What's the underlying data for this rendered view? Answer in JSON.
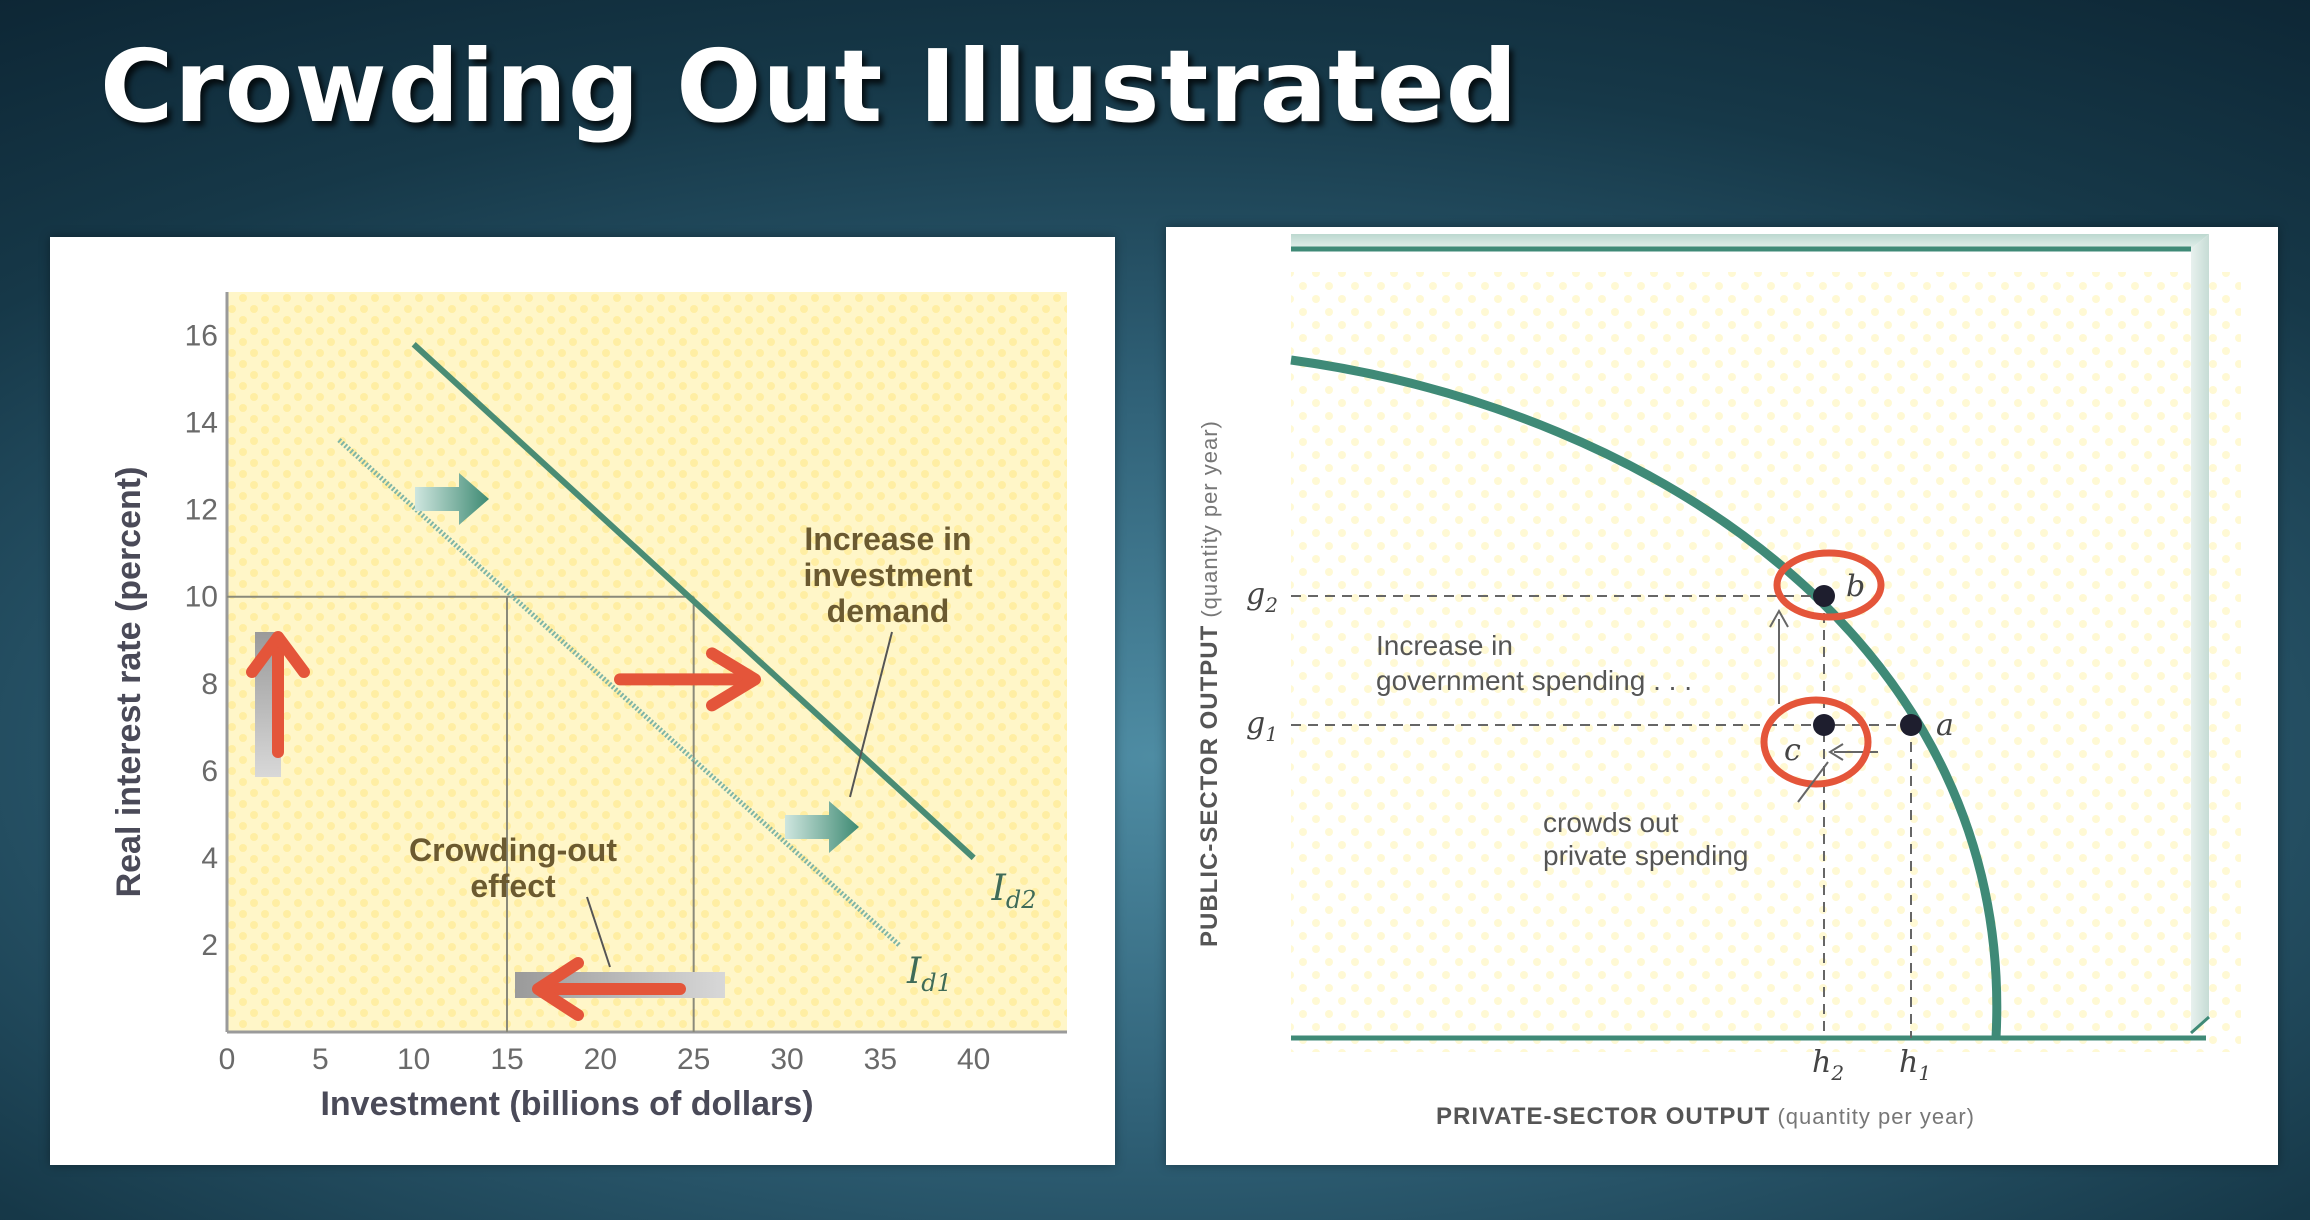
{
  "slide": {
    "title": "Crowding Out Illustrated"
  },
  "chart_data": [
    {
      "type": "line",
      "xlabel": "Investment (billions of dollars)",
      "ylabel": "Real interest rate (percent)",
      "xlim": [
        0,
        45
      ],
      "ylim": [
        0,
        17
      ],
      "x_ticks": [
        "0",
        "5",
        "10",
        "15",
        "20",
        "25",
        "30",
        "35",
        "40"
      ],
      "y_ticks": [
        "2",
        "4",
        "6",
        "8",
        "10",
        "12",
        "14",
        "16"
      ],
      "background": "#fff6c8",
      "series": [
        {
          "name": "I",
          "subscript": "d1",
          "color": "#7fb5a6",
          "points": [
            [
              6,
              13.6
            ],
            [
              36,
              2
            ]
          ]
        },
        {
          "name": "I",
          "subscript": "d2",
          "color": "#4a8c74",
          "points": [
            [
              10,
              15.8
            ],
            [
              40,
              4
            ]
          ]
        }
      ],
      "reference_lines": {
        "rate": 10,
        "investment_before": 25,
        "investment_after": 15
      },
      "annotations": {
        "increase": [
          "Increase in",
          "investment",
          "demand"
        ],
        "crowding": [
          "Crowding-out",
          "effect"
        ]
      },
      "arrow_color": "#e4553a"
    },
    {
      "type": "line",
      "xlabel": "PRIVATE-SECTOR OUTPUT",
      "xlabel_units": "(quantity per year)",
      "ylabel": "PUBLIC-SECTOR OUTPUT",
      "ylabel_units": "(quantity per year)",
      "curve": "production possibilities frontier",
      "curve_color": "#3f8a77",
      "points": [
        {
          "label": "a",
          "position": "(h1, g1)"
        },
        {
          "label": "b",
          "position": "(h2, g2)"
        },
        {
          "label": "c",
          "position": "(h2, g1)"
        }
      ],
      "tick_labels": {
        "g2": {
          "base": "g",
          "sub": "2"
        },
        "g1": {
          "base": "g",
          "sub": "1"
        },
        "h2": {
          "base": "h",
          "sub": "2"
        },
        "h1": {
          "base": "h",
          "sub": "1"
        }
      },
      "annotations": {
        "increase": [
          "Increase in",
          "government spending . . ."
        ],
        "crowds": [
          "crowds out",
          "private spending"
        ]
      },
      "highlight_color": "#e4553a"
    }
  ]
}
